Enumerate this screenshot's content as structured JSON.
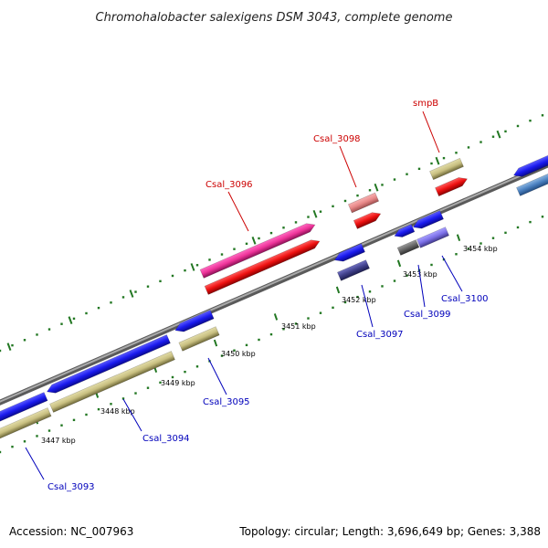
{
  "title": "Chromohalobacter salexigens DSM 3043, complete genome",
  "footer": {
    "accession": "Accession: NC_007963",
    "summary": "Topology: circular; Length: 3,696,649 bp; Genes: 3,388"
  },
  "scale_labels": [
    "3447 kbp",
    "3448 kbp",
    "3449 kbp",
    "3450 kbp",
    "3451 kbp",
    "3452 kbp",
    "3453 kbp",
    "3454 kbp"
  ],
  "gene_labels": {
    "forward": [
      "Csal_3096",
      "Csal_3098",
      "smpB"
    ],
    "reverse": [
      "Csal_3093",
      "Csal_3094",
      "Csal_3095",
      "Csal_3097",
      "Csal_3099",
      "Csal_3100"
    ]
  },
  "colors": {
    "forward_label": "#cc0000",
    "reverse_label": "#0000bb",
    "cds_blue": "#1a1aee",
    "cds_red": "#ee1111",
    "cds_olive": "#c8bf80",
    "backbone": "#888888",
    "tick": "#227722"
  }
}
